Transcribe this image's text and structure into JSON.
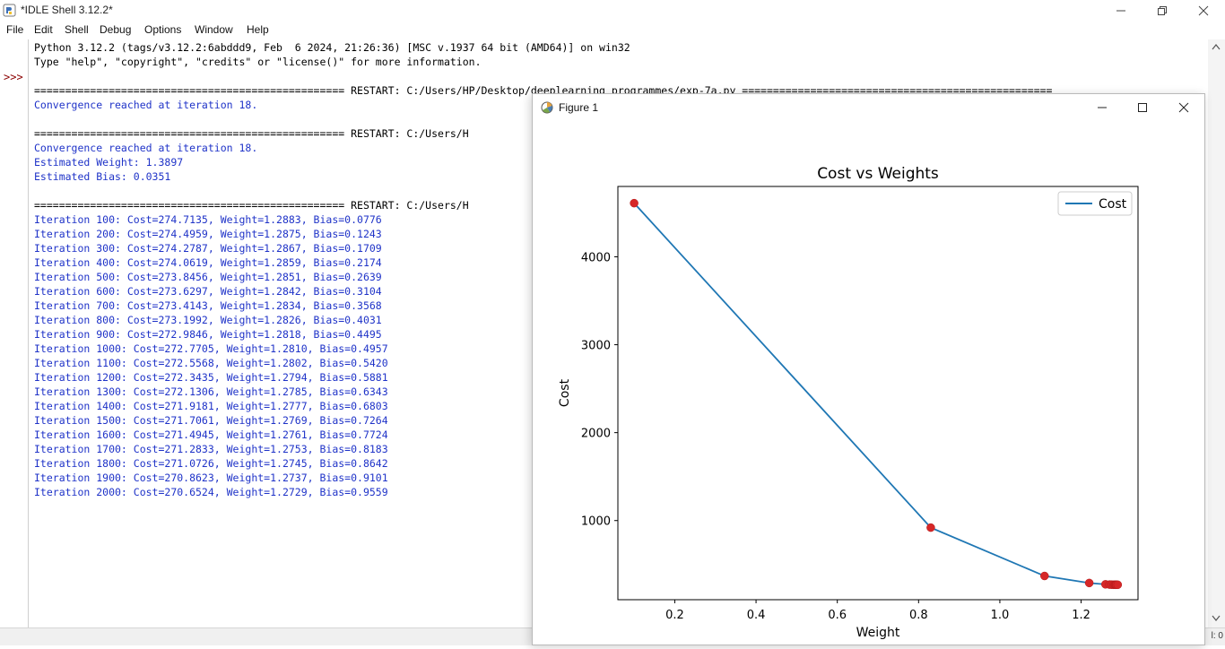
{
  "window": {
    "title": "*IDLE Shell 3.12.2*"
  },
  "menu": [
    "File",
    "Edit",
    "Shell",
    "Debug",
    "Options",
    "Window",
    "Help"
  ],
  "shell": {
    "prompt": ">>>",
    "lines": [
      {
        "text": "Python 3.12.2 (tags/v3.12.2:6abddd9, Feb  6 2024, 21:26:36) [MSC v.1937 64 bit (AMD64)] on win32",
        "color": "black"
      },
      {
        "text": "Type \"help\", \"copyright\", \"credits\" or \"license()\" for more information.",
        "color": "black"
      },
      {
        "text": "",
        "color": "black"
      },
      {
        "text": "================================================== RESTART: C:/Users/HP/Desktop/deeplearning programmes/exp-7a.py ==================================================",
        "color": "black"
      },
      {
        "text": "Convergence reached at iteration 18.",
        "color": "blue"
      },
      {
        "text": "",
        "color": "black"
      },
      {
        "text": "================================================== RESTART: C:/Users/H",
        "color": "black"
      },
      {
        "text": "Convergence reached at iteration 18.",
        "color": "blue"
      },
      {
        "text": "Estimated Weight: 1.3897",
        "color": "blue"
      },
      {
        "text": "Estimated Bias: 0.0351",
        "color": "blue"
      },
      {
        "text": "",
        "color": "black"
      },
      {
        "text": "================================================== RESTART: C:/Users/H",
        "color": "black"
      },
      {
        "text": "Iteration 100: Cost=274.7135, Weight=1.2883, Bias=0.0776",
        "color": "blue"
      },
      {
        "text": "Iteration 200: Cost=274.4959, Weight=1.2875, Bias=0.1243",
        "color": "blue"
      },
      {
        "text": "Iteration 300: Cost=274.2787, Weight=1.2867, Bias=0.1709",
        "color": "blue"
      },
      {
        "text": "Iteration 400: Cost=274.0619, Weight=1.2859, Bias=0.2174",
        "color": "blue"
      },
      {
        "text": "Iteration 500: Cost=273.8456, Weight=1.2851, Bias=0.2639",
        "color": "blue"
      },
      {
        "text": "Iteration 600: Cost=273.6297, Weight=1.2842, Bias=0.3104",
        "color": "blue"
      },
      {
        "text": "Iteration 700: Cost=273.4143, Weight=1.2834, Bias=0.3568",
        "color": "blue"
      },
      {
        "text": "Iteration 800: Cost=273.1992, Weight=1.2826, Bias=0.4031",
        "color": "blue"
      },
      {
        "text": "Iteration 900: Cost=272.9846, Weight=1.2818, Bias=0.4495",
        "color": "blue"
      },
      {
        "text": "Iteration 1000: Cost=272.7705, Weight=1.2810, Bias=0.4957",
        "color": "blue"
      },
      {
        "text": "Iteration 1100: Cost=272.5568, Weight=1.2802, Bias=0.5420",
        "color": "blue"
      },
      {
        "text": "Iteration 1200: Cost=272.3435, Weight=1.2794, Bias=0.5881",
        "color": "blue"
      },
      {
        "text": "Iteration 1300: Cost=272.1306, Weight=1.2785, Bias=0.6343",
        "color": "blue"
      },
      {
        "text": "Iteration 1400: Cost=271.9181, Weight=1.2777, Bias=0.6803",
        "color": "blue"
      },
      {
        "text": "Iteration 1500: Cost=271.7061, Weight=1.2769, Bias=0.7264",
        "color": "blue"
      },
      {
        "text": "Iteration 1600: Cost=271.4945, Weight=1.2761, Bias=0.7724",
        "color": "blue"
      },
      {
        "text": "Iteration 1700: Cost=271.2833, Weight=1.2753, Bias=0.8183",
        "color": "blue"
      },
      {
        "text": "Iteration 1800: Cost=271.0726, Weight=1.2745, Bias=0.8642",
        "color": "blue"
      },
      {
        "text": "Iteration 1900: Cost=270.8623, Weight=1.2737, Bias=0.9101",
        "color": "blue"
      },
      {
        "text": "Iteration 2000: Cost=270.6524, Weight=1.2729, Bias=0.9559",
        "color": "blue"
      }
    ]
  },
  "status": {
    "text": "l: 0"
  },
  "figure": {
    "title": "Figure 1"
  },
  "chart_data": {
    "type": "line",
    "title": "Cost vs Weights",
    "xlabel": "Weight",
    "ylabel": "Cost",
    "legend": {
      "entries": [
        "Cost"
      ],
      "placement": "top-right"
    },
    "xlim": [
      0.06,
      1.34
    ],
    "ylim": [
      100,
      4800
    ],
    "xticks": [
      0.2,
      0.4,
      0.6,
      0.8,
      1.0,
      1.2
    ],
    "xtick_labels": [
      "0.2",
      "0.4",
      "0.6",
      "0.8",
      "1.0",
      "1.2"
    ],
    "yticks": [
      1000,
      2000,
      3000,
      4000
    ],
    "ytick_labels": [
      "1000",
      "2000",
      "3000",
      "4000"
    ],
    "grid": false,
    "line_color": "#1f77b4",
    "marker_color": "#d62728",
    "series": [
      {
        "name": "Cost",
        "x": [
          0.1,
          0.83,
          1.11,
          1.22,
          1.26,
          1.27,
          1.275,
          1.28,
          1.283,
          1.285,
          1.287,
          1.29
        ],
        "y": [
          4610,
          920,
          370,
          290,
          275,
          272,
          271,
          270,
          270,
          270,
          270,
          270
        ]
      }
    ]
  }
}
